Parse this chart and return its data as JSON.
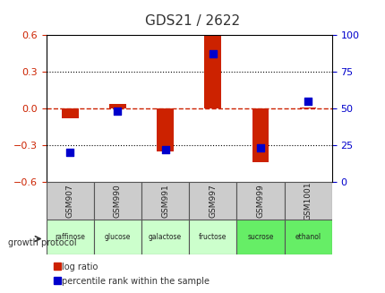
{
  "title": "GDS21 / 2622",
  "samples": [
    "GSM907",
    "GSM990",
    "GSM991",
    "GSM997",
    "GSM999",
    "GSM1001"
  ],
  "protocols": [
    "raffinose",
    "glucose",
    "galactose",
    "fructose",
    "sucrose",
    "ethanol"
  ],
  "log_ratio": [
    -0.08,
    0.04,
    -0.35,
    0.62,
    -0.44,
    0.01
  ],
  "percentile_rank": [
    20,
    48,
    22,
    87,
    23,
    55
  ],
  "ylim_left": [
    -0.6,
    0.6
  ],
  "ylim_right": [
    0,
    100
  ],
  "yticks_left": [
    -0.6,
    -0.3,
    0.0,
    0.3,
    0.6
  ],
  "yticks_right": [
    0,
    25,
    50,
    75,
    100
  ],
  "bar_color": "#cc2200",
  "dot_color": "#0000cc",
  "zero_line_color": "#cc2200",
  "grid_color": "#000000",
  "title_color": "#333333",
  "left_tick_color": "#cc2200",
  "right_tick_color": "#0000cc",
  "protocol_colors": [
    "#ccffcc",
    "#ccffcc",
    "#ccffcc",
    "#ccffcc",
    "#66ee66",
    "#66ee66"
  ],
  "sample_box_color": "#cccccc",
  "legend_label_ratio": "log ratio",
  "legend_label_pct": "percentile rank within the sample",
  "growth_label": "growth protocol",
  "bar_width": 0.35
}
